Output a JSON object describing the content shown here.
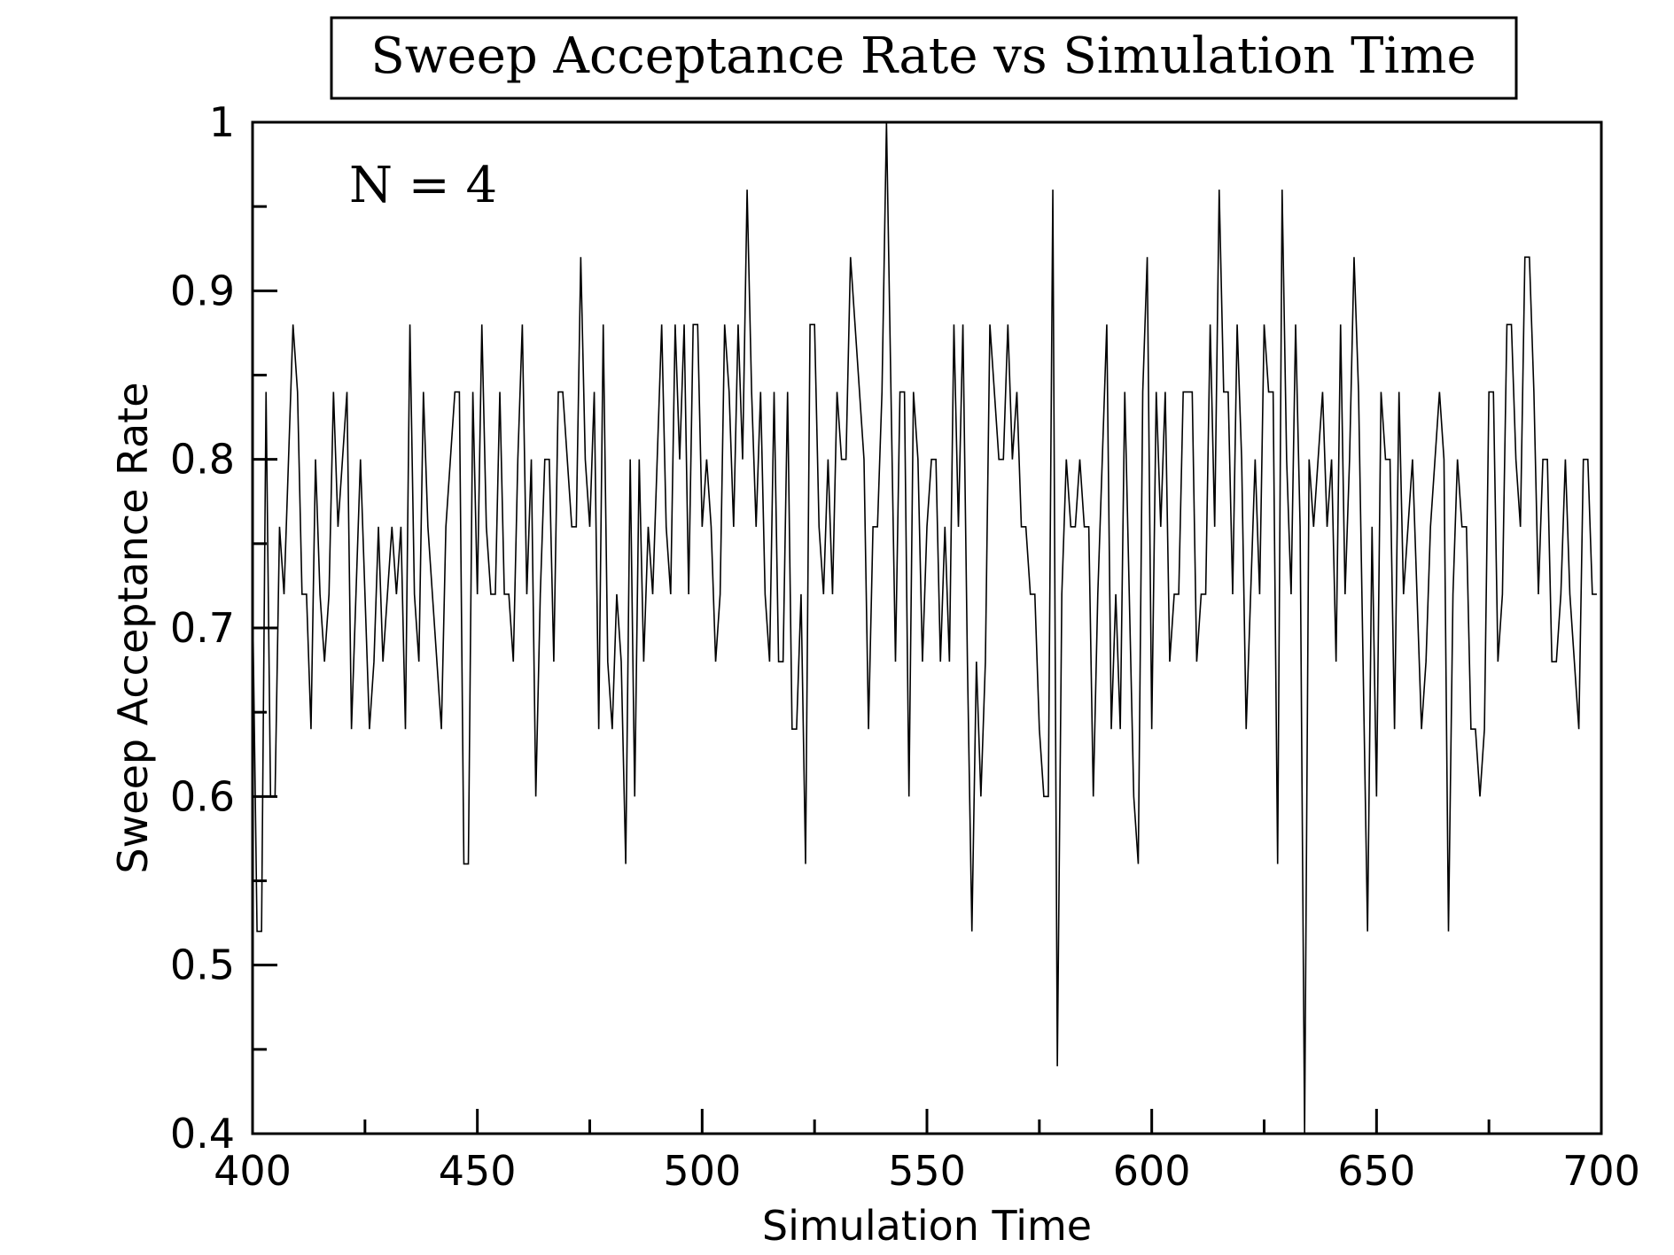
{
  "chart_data": {
    "type": "line",
    "title": "Sweep Acceptance Rate vs Simulation Time",
    "xlabel": "Simulation Time",
    "ylabel": "Sweep Acceptance Rate",
    "annotation": "N = 4",
    "xlim": [
      400,
      700
    ],
    "ylim": [
      0.4,
      1.0
    ],
    "x_ticks": [
      400,
      450,
      500,
      550,
      600,
      650,
      700
    ],
    "x_tick_labels": [
      "400",
      "450",
      "500",
      "550",
      "600",
      "650",
      "700"
    ],
    "y_ticks": [
      0.4,
      0.5,
      0.6,
      0.7,
      0.8,
      0.9,
      1.0
    ],
    "y_tick_labels": [
      "0.4",
      "0.5",
      "0.6",
      "0.7",
      "0.8",
      "0.9",
      "1"
    ],
    "x_minor_step": 25,
    "y_minor_step": 0.05,
    "grid": false,
    "legend": "none",
    "line_color": "#000000",
    "series": [
      {
        "x_start": 400,
        "x_step": 1,
        "values": [
          0.72,
          0.52,
          0.52,
          0.84,
          0.6,
          0.6,
          0.76,
          0.72,
          0.8,
          0.88,
          0.84,
          0.72,
          0.72,
          0.64,
          0.8,
          0.72,
          0.68,
          0.72,
          0.84,
          0.76,
          0.8,
          0.84,
          0.64,
          0.72,
          0.8,
          0.72,
          0.64,
          0.68,
          0.76,
          0.68,
          0.72,
          0.76,
          0.72,
          0.76,
          0.64,
          0.88,
          0.72,
          0.68,
          0.84,
          0.76,
          0.72,
          0.68,
          0.64,
          0.76,
          0.8,
          0.84,
          0.84,
          0.56,
          0.56,
          0.84,
          0.72,
          0.88,
          0.76,
          0.72,
          0.72,
          0.84,
          0.72,
          0.72,
          0.68,
          0.8,
          0.88,
          0.72,
          0.8,
          0.6,
          0.72,
          0.8,
          0.8,
          0.68,
          0.84,
          0.84,
          0.8,
          0.76,
          0.76,
          0.92,
          0.8,
          0.76,
          0.84,
          0.64,
          0.88,
          0.68,
          0.64,
          0.72,
          0.68,
          0.56,
          0.8,
          0.6,
          0.8,
          0.68,
          0.76,
          0.72,
          0.8,
          0.88,
          0.76,
          0.72,
          0.88,
          0.8,
          0.88,
          0.72,
          0.88,
          0.88,
          0.76,
          0.8,
          0.76,
          0.68,
          0.72,
          0.88,
          0.84,
          0.76,
          0.88,
          0.8,
          0.96,
          0.84,
          0.76,
          0.84,
          0.72,
          0.68,
          0.84,
          0.68,
          0.68,
          0.84,
          0.64,
          0.64,
          0.72,
          0.56,
          0.88,
          0.88,
          0.76,
          0.72,
          0.8,
          0.72,
          0.84,
          0.8,
          0.8,
          0.92,
          0.88,
          0.84,
          0.8,
          0.64,
          0.76,
          0.76,
          0.84,
          1.0,
          0.84,
          0.68,
          0.84,
          0.84,
          0.6,
          0.84,
          0.8,
          0.68,
          0.76,
          0.8,
          0.8,
          0.68,
          0.76,
          0.68,
          0.88,
          0.76,
          0.88,
          0.68,
          0.52,
          0.68,
          0.6,
          0.68,
          0.88,
          0.84,
          0.8,
          0.8,
          0.88,
          0.8,
          0.84,
          0.76,
          0.76,
          0.72,
          0.72,
          0.64,
          0.6,
          0.6,
          0.96,
          0.44,
          0.72,
          0.8,
          0.76,
          0.76,
          0.8,
          0.76,
          0.76,
          0.6,
          0.72,
          0.8,
          0.88,
          0.64,
          0.72,
          0.64,
          0.84,
          0.72,
          0.6,
          0.56,
          0.84,
          0.92,
          0.64,
          0.84,
          0.76,
          0.84,
          0.68,
          0.72,
          0.72,
          0.84,
          0.84,
          0.84,
          0.68,
          0.72,
          0.72,
          0.88,
          0.76,
          0.96,
          0.84,
          0.84,
          0.72,
          0.88,
          0.8,
          0.64,
          0.72,
          0.8,
          0.72,
          0.88,
          0.84,
          0.84,
          0.56,
          0.96,
          0.8,
          0.72,
          0.88,
          0.76,
          0.4,
          0.8,
          0.76,
          0.8,
          0.84,
          0.76,
          0.8,
          0.68,
          0.88,
          0.72,
          0.8,
          0.92,
          0.84,
          0.68,
          0.52,
          0.76,
          0.6,
          0.84,
          0.8,
          0.8,
          0.64,
          0.84,
          0.72,
          0.76,
          0.8,
          0.72,
          0.64,
          0.68,
          0.76,
          0.8,
          0.84,
          0.8,
          0.52,
          0.72,
          0.8,
          0.76,
          0.76,
          0.64,
          0.64,
          0.6,
          0.64,
          0.84,
          0.84,
          0.68,
          0.72,
          0.88,
          0.88,
          0.8,
          0.76,
          0.92,
          0.92,
          0.84,
          0.72,
          0.8,
          0.8,
          0.68,
          0.68,
          0.72,
          0.8,
          0.72,
          0.68,
          0.64,
          0.8,
          0.8,
          0.72,
          0.72
        ]
      }
    ]
  }
}
